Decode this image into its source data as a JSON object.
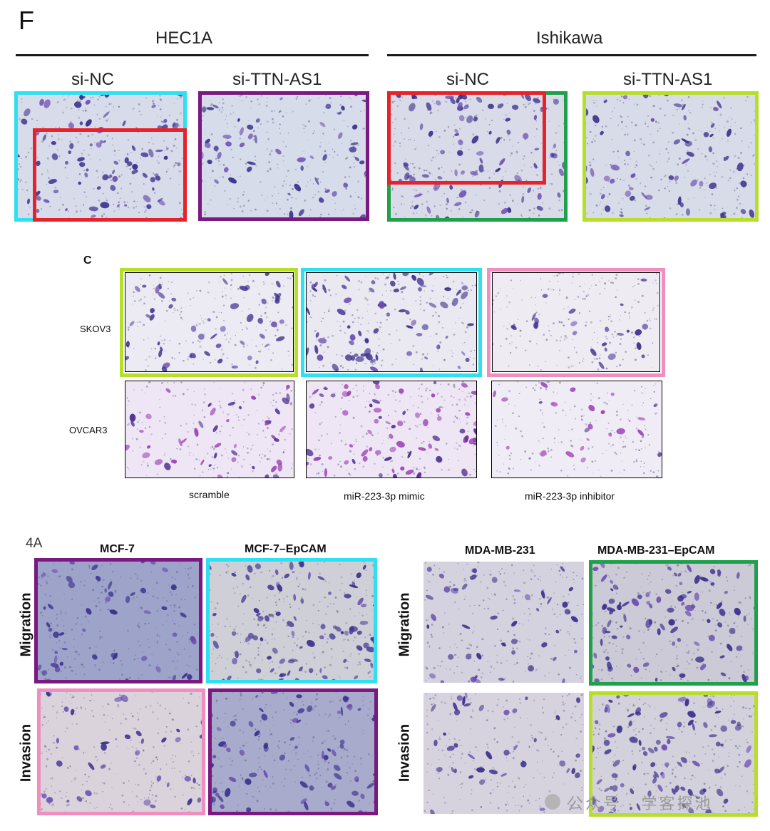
{
  "panel_f": {
    "letter": "F",
    "groups": [
      "HEC1A",
      "Ishikawa"
    ],
    "columns": [
      "si-NC",
      "si-TTN-AS1",
      "si-NC",
      "si-TTN-AS1"
    ]
  },
  "panel_c": {
    "letter": "C",
    "rows": [
      "SKOV3",
      "OVCAR3"
    ],
    "columns": [
      "scramble",
      "miR-223-3p mimic",
      "miR-223-3p inhibitor"
    ]
  },
  "panel_4a": {
    "letter": "4A",
    "columns": [
      "MCF-7",
      "MCF-7–EpCAM",
      "MDA-MB-231",
      "MDA-MB-231–EpCAM"
    ],
    "rows": [
      "Migration",
      "Invasion"
    ]
  },
  "watermark": {
    "text": "公众号 · 学客探池",
    "icon": "wechat-icon"
  },
  "colors": {
    "cyan": "#2fe0f0",
    "red": "#e8222b",
    "purple": "#7a1a80",
    "green": "#1fa04a",
    "lime": "#b6de2b",
    "pink": "#f08ec0",
    "stain": "#3a2f8c",
    "stain_magenta": "#8a3aa8"
  }
}
